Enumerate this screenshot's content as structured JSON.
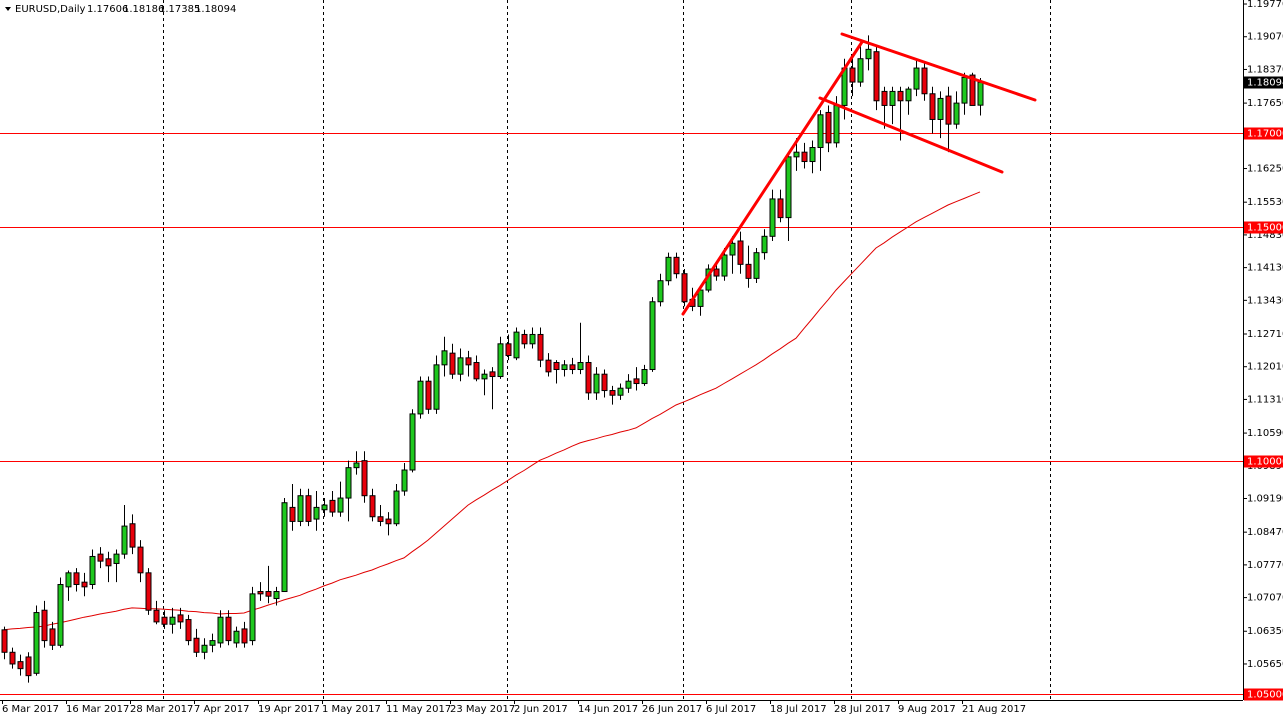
{
  "chart_data": {
    "type": "candlestick",
    "title": "EURUSD,Daily",
    "x": [
      "6 Mar 2017",
      null,
      null,
      null,
      null,
      null,
      null,
      null,
      "16 Mar 2017",
      null,
      null,
      null,
      null,
      null,
      null,
      null,
      "28 Mar 2017",
      null,
      null,
      null,
      null,
      null,
      null,
      null,
      "7 Apr 2017",
      null,
      null,
      null,
      null,
      null,
      null,
      null,
      "19 Apr 2017",
      null,
      null,
      null,
      null,
      null,
      null,
      null,
      "1 May 2017",
      null,
      null,
      null,
      null,
      null,
      null,
      null,
      "11 May 2017",
      null,
      null,
      null,
      null,
      null,
      null,
      null,
      "23 May 2017",
      null,
      null,
      null,
      null,
      null,
      null,
      null,
      "2 Jun 2017",
      null,
      null,
      null,
      null,
      null,
      null,
      null,
      "14 Jun 2017",
      null,
      null,
      null,
      null,
      null,
      null,
      null,
      "26 Jun 2017",
      null,
      null,
      null,
      null,
      null,
      null,
      null,
      "6 Jul 2017",
      null,
      null,
      null,
      null,
      null,
      null,
      null,
      "18 Jul 2017",
      null,
      null,
      null,
      null,
      null,
      null,
      null,
      "28 Jul 2017",
      null,
      null,
      null,
      null,
      null,
      null,
      null,
      "9 Aug 2017",
      null,
      null,
      null,
      null,
      null,
      null,
      null,
      "21 Aug 2017",
      null,
      null
    ],
    "open": [
      1.0638,
      1.059,
      1.057,
      1.058,
      1.0545,
      1.068,
      1.064,
      1.0605,
      1.073,
      1.076,
      1.074,
      1.0735,
      1.08,
      1.079,
      1.078,
      1.08,
      1.0865,
      1.0815,
      1.076,
      1.068,
      1.0665,
      1.065,
      1.067,
      1.066,
      1.062,
      1.059,
      1.0605,
      1.061,
      1.0665,
      1.061,
      1.064,
      1.0615,
      1.072,
      1.072,
      1.0705,
      1.072,
      1.09,
      1.087,
      1.0925,
      1.0875,
      1.0895,
      1.0915,
      1.089,
      1.092,
      1.0985,
      1.1,
      1.0925,
      1.088,
      1.0875,
      1.0865,
      1.0935,
      1.098,
      1.11,
      1.117,
      1.111,
      1.1205,
      1.123,
      1.1185,
      1.122,
      1.121,
      1.1175,
      1.119,
      1.118,
      1.125,
      1.122,
      1.127,
      1.125,
      1.127,
      1.1215,
      1.121,
      1.1195,
      1.1205,
      1.1195,
      1.121,
      1.1145,
      1.1185,
      1.115,
      1.114,
      1.1155,
      1.1175,
      1.1165,
      1.1195,
      1.134,
      1.1385,
      1.1435,
      1.14,
      1.1345,
      1.133,
      1.1365,
      1.141,
      1.1395,
      1.144,
      1.147,
      1.142,
      1.139,
      1.1445,
      1.148,
      1.156,
      1.152,
      1.165,
      1.166,
      1.164,
      1.167,
      1.1745,
      1.168,
      1.176,
      1.184,
      1.181,
      1.186,
      1.1875,
      1.179,
      1.176,
      1.179,
      1.177,
      1.1795,
      1.184,
      1.1785,
      1.173,
      1.178,
      1.172,
      1.1765,
      1.1825,
      1.17606
    ],
    "high": [
      1.0645,
      1.06,
      1.0585,
      1.059,
      1.069,
      1.07,
      1.0655,
      1.075,
      1.0765,
      1.077,
      1.076,
      1.081,
      1.0815,
      1.0805,
      1.081,
      1.0905,
      1.0885,
      1.083,
      1.077,
      1.07,
      1.068,
      1.0685,
      1.0685,
      1.067,
      1.064,
      1.062,
      1.063,
      1.068,
      1.068,
      1.0645,
      1.0655,
      1.073,
      1.074,
      1.0775,
      1.073,
      1.092,
      1.095,
      1.094,
      1.094,
      1.0935,
      1.092,
      1.0935,
      1.0955,
      1.1,
      1.102,
      1.102,
      1.094,
      1.0905,
      1.089,
      1.095,
      1.0995,
      1.111,
      1.118,
      1.118,
      1.1225,
      1.1265,
      1.125,
      1.124,
      1.1235,
      1.1225,
      1.1195,
      1.12,
      1.1265,
      1.127,
      1.1285,
      1.128,
      1.1285,
      1.1285,
      1.123,
      1.1215,
      1.1215,
      1.122,
      1.1295,
      1.1225,
      1.12,
      1.1195,
      1.116,
      1.1165,
      1.1185,
      1.12,
      1.1205,
      1.135,
      1.14,
      1.1445,
      1.1445,
      1.141,
      1.137,
      1.1375,
      1.142,
      1.1425,
      1.1455,
      1.148,
      1.149,
      1.146,
      1.1455,
      1.1495,
      1.158,
      1.158,
      1.166,
      1.169,
      1.168,
      1.1685,
      1.175,
      1.176,
      1.178,
      1.186,
      1.187,
      1.1895,
      1.191,
      1.1885,
      1.18,
      1.18,
      1.18,
      1.18,
      1.186,
      1.185,
      1.18,
      1.179,
      1.18,
      1.179,
      1.183,
      1.183,
      1.18186
    ],
    "low": [
      1.0575,
      1.0555,
      1.054,
      1.0525,
      1.054,
      1.06,
      1.0595,
      1.06,
      1.07,
      1.072,
      1.071,
      1.0725,
      1.077,
      1.074,
      1.074,
      1.079,
      1.08,
      1.074,
      1.067,
      1.065,
      1.064,
      1.063,
      1.064,
      1.0605,
      1.058,
      1.0575,
      1.059,
      1.06,
      1.0605,
      1.06,
      1.06,
      1.0605,
      1.07,
      1.0695,
      1.069,
      1.072,
      1.085,
      1.086,
      1.086,
      1.085,
      1.088,
      1.088,
      1.088,
      1.087,
      1.097,
      1.091,
      1.087,
      1.086,
      1.084,
      1.086,
      1.0925,
      1.0975,
      1.109,
      1.11,
      1.11,
      1.118,
      1.1175,
      1.117,
      1.118,
      1.117,
      1.114,
      1.111,
      1.1175,
      1.1215,
      1.1215,
      1.124,
      1.124,
      1.12,
      1.118,
      1.1165,
      1.118,
      1.1185,
      1.1185,
      1.113,
      1.113,
      1.1135,
      1.112,
      1.113,
      1.1145,
      1.115,
      1.116,
      1.119,
      1.133,
      1.1375,
      1.139,
      1.133,
      1.132,
      1.131,
      1.136,
      1.1385,
      1.1385,
      1.14,
      1.14,
      1.137,
      1.138,
      1.143,
      1.147,
      1.151,
      1.147,
      1.162,
      1.1625,
      1.1615,
      1.162,
      1.166,
      1.167,
      1.173,
      1.178,
      1.18,
      1.1835,
      1.175,
      1.171,
      1.172,
      1.1685,
      1.174,
      1.178,
      1.177,
      1.17,
      1.169,
      1.166,
      1.171,
      1.174,
      1.176,
      1.17385
    ],
    "close": [
      1.059,
      1.0565,
      1.0555,
      1.054,
      1.0675,
      1.0615,
      1.0605,
      1.0735,
      1.076,
      1.0735,
      1.073,
      1.0795,
      1.0785,
      1.0775,
      1.08,
      1.086,
      1.0815,
      1.076,
      1.068,
      1.0655,
      1.065,
      1.0665,
      1.0655,
      1.0615,
      1.059,
      1.0605,
      1.0615,
      1.0665,
      1.0615,
      1.0635,
      1.061,
      1.0715,
      1.0715,
      1.071,
      1.072,
      1.091,
      1.087,
      1.0925,
      1.087,
      1.09,
      1.0905,
      1.089,
      1.092,
      1.0985,
      1.0995,
      1.0925,
      1.088,
      1.087,
      1.0865,
      1.0935,
      1.098,
      1.11,
      1.117,
      1.111,
      1.1205,
      1.1235,
      1.1185,
      1.122,
      1.1205,
      1.1175,
      1.1185,
      1.118,
      1.125,
      1.1225,
      1.1275,
      1.125,
      1.127,
      1.1215,
      1.119,
      1.1195,
      1.1205,
      1.1195,
      1.121,
      1.1145,
      1.1185,
      1.115,
      1.114,
      1.1155,
      1.117,
      1.1165,
      1.1195,
      1.134,
      1.1385,
      1.1435,
      1.14,
      1.134,
      1.133,
      1.1365,
      1.141,
      1.1395,
      1.144,
      1.1465,
      1.142,
      1.139,
      1.1445,
      1.148,
      1.156,
      1.152,
      1.165,
      1.166,
      1.164,
      1.167,
      1.174,
      1.168,
      1.176,
      1.184,
      1.181,
      1.186,
      1.188,
      1.177,
      1.176,
      1.179,
      1.177,
      1.1795,
      1.184,
      1.1785,
      1.173,
      1.1775,
      1.172,
      1.1765,
      1.182,
      1.176,
      1.18094
    ],
    "ma": [
      1.0638,
      1.064,
      1.0641,
      1.0643,
      1.0644,
      1.0646,
      1.065,
      1.0653,
      1.0657,
      1.0661,
      1.0665,
      1.0668,
      1.0672,
      1.0675,
      1.0678,
      1.0682,
      1.0685,
      1.0684,
      1.0683,
      1.0683,
      1.0682,
      1.0681,
      1.068,
      1.0678,
      1.0677,
      1.0675,
      1.0674,
      1.0672,
      1.0673,
      1.0673,
      1.0674,
      1.068,
      1.0685,
      1.0691,
      1.0696,
      1.0702,
      1.0707,
      1.0712,
      1.0719,
      1.0725,
      1.0732,
      1.0738,
      1.0745,
      1.075,
      1.0755,
      1.0761,
      1.0766,
      1.0773,
      1.0779,
      1.0786,
      1.0792,
      1.0805,
      1.0817,
      1.083,
      1.0845,
      1.086,
      1.0875,
      1.089,
      1.0905,
      1.0916,
      1.0926,
      1.0937,
      1.0947,
      1.0958,
      1.0969,
      1.0979,
      1.099,
      1.1001,
      1.1008,
      1.1016,
      1.1023,
      1.1031,
      1.1038,
      1.1043,
      1.1047,
      1.1052,
      1.1056,
      1.1061,
      1.1065,
      1.107,
      1.108,
      1.109,
      1.1099,
      1.1109,
      1.1119,
      1.1126,
      1.1133,
      1.1141,
      1.1148,
      1.1155,
      1.1165,
      1.1175,
      1.1185,
      1.1195,
      1.1205,
      1.1216,
      1.1228,
      1.1239,
      1.1251,
      1.1262,
      1.1283,
      1.1303,
      1.1324,
      1.1344,
      1.1365,
      1.1383,
      1.1401,
      1.1419,
      1.1437,
      1.1455,
      1.1466,
      1.1478,
      1.1489,
      1.15,
      1.1511,
      1.152,
      1.1529,
      1.1538,
      1.1547,
      1.1554,
      1.1561,
      1.1568,
      1.1575
    ],
    "ma_color": "#e00000",
    "up_color": "#1ec81e",
    "down_color": "#e8000b",
    "ylim": [
      1.04879,
      1.19856
    ],
    "yticks": [
      {
        "value": 1.1977,
        "label": "1.19770"
      },
      {
        "value": 1.1907,
        "label": "1.19070"
      },
      {
        "value": 1.1837,
        "label": "1.18370"
      },
      {
        "value": 1.1765,
        "label": "1.17650"
      },
      {
        "value": 1.1625,
        "label": "1.16250"
      },
      {
        "value": 1.1553,
        "label": "1.15530"
      },
      {
        "value": 1.1483,
        "label": "1.14830"
      },
      {
        "value": 1.1413,
        "label": "1.14130"
      },
      {
        "value": 1.1343,
        "label": "1.13430"
      },
      {
        "value": 1.1271,
        "label": "1.12710"
      },
      {
        "value": 1.1201,
        "label": "1.12010"
      },
      {
        "value": 1.1131,
        "label": "1.11310"
      },
      {
        "value": 1.1059,
        "label": "1.10590"
      },
      {
        "value": 1.0989,
        "label": "1.09890"
      },
      {
        "value": 1.0919,
        "label": "1.09190"
      },
      {
        "value": 1.0847,
        "label": "1.08470"
      },
      {
        "value": 1.0777,
        "label": "1.07770"
      },
      {
        "value": 1.0707,
        "label": "1.07070"
      },
      {
        "value": 1.0635,
        "label": "1.06350"
      },
      {
        "value": 1.0565,
        "label": "1.05650"
      }
    ],
    "hlines": [
      {
        "value": 1.17,
        "label": "1.17000"
      },
      {
        "value": 1.15,
        "label": "1.15000"
      },
      {
        "value": 1.1,
        "label": "1.10000"
      },
      {
        "value": 1.05,
        "label": "1.05000"
      }
    ],
    "hline_color": "#ff0000"
  }
}
